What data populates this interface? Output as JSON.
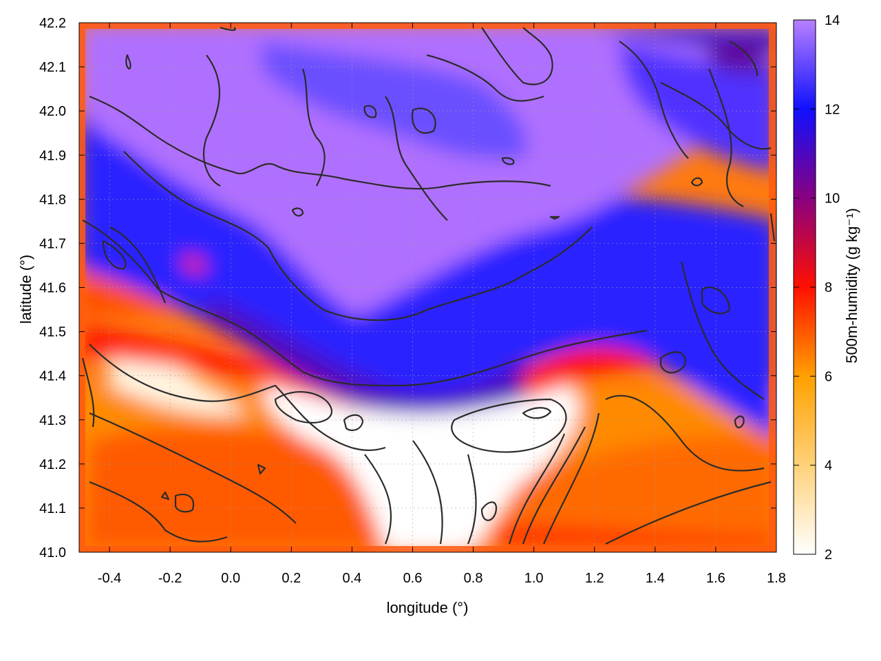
{
  "chart_data": {
    "type": "heatmap",
    "title": "",
    "xlabel": "longitude (°)",
    "ylabel": "latitude (°)",
    "xlim": [
      -0.5,
      1.8
    ],
    "ylim": [
      41.0,
      42.2
    ],
    "x_ticks": [
      "-0.4",
      "-0.2",
      "0.0",
      "0.2",
      "0.4",
      "0.6",
      "0.8",
      "1.0",
      "1.2",
      "1.4",
      "1.6",
      "1.8"
    ],
    "y_ticks": [
      "41.0",
      "41.1",
      "41.2",
      "41.3",
      "41.4",
      "41.5",
      "41.6",
      "41.7",
      "41.8",
      "41.9",
      "42.0",
      "42.1",
      "42.2"
    ],
    "grid": true,
    "colorbar": {
      "label": "500m-humidity (g kg⁻¹)",
      "range": [
        2,
        14
      ],
      "ticks": [
        "2",
        "4",
        "6",
        "8",
        "10",
        "12",
        "14"
      ],
      "colors": [
        "#ffffff",
        "#ffa500",
        "#ff0000",
        "#800080",
        "#0000ff",
        "#b070ff"
      ]
    },
    "regions": [
      {
        "name": "north-purple-band",
        "approx_value": 13.5
      },
      {
        "name": "central-blue-band",
        "approx_value": 11
      },
      {
        "name": "southern-orange-band",
        "approx_value": 6
      },
      {
        "name": "southern-white-dry-core",
        "approx_value": 2.5
      }
    ],
    "contours": "black contour lines of terrain"
  }
}
